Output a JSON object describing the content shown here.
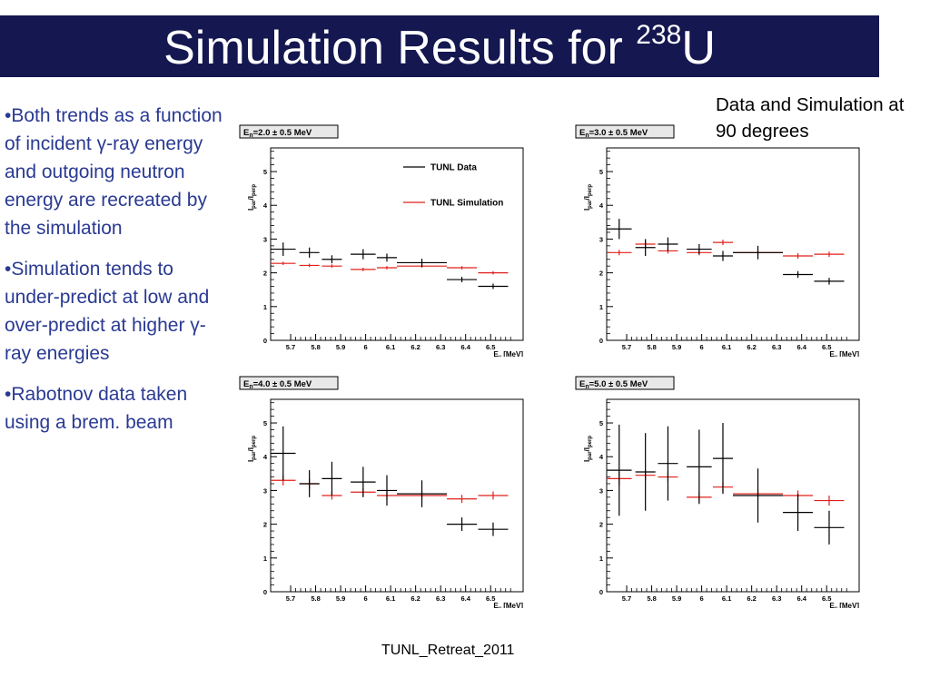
{
  "title": {
    "text": "Simulation Results for ",
    "superscript": "238",
    "element": "U"
  },
  "bullets": [
    {
      "marker": "•",
      "pre": "Both trends as a function of incident ",
      "gamma": "γ",
      "post": "-ray energy and outgoing neutron energy are recreated by the simulation"
    },
    {
      "marker": "•",
      "pre": "Simulation tends to under-predict at low and over-predict at higher ",
      "gamma": "γ",
      "post": "-ray energies"
    },
    {
      "marker": "•",
      "pre": "Rabotnov data taken using a brem. beam",
      "gamma": "",
      "post": ""
    }
  ],
  "side_note": "Data and Simulation at 90 degrees",
  "footer": "TUNL_Retreat_2011",
  "colors": {
    "title_bg": "#141750",
    "bullet_text": "#2a3a92",
    "data": "#000000",
    "simulation": "#e0201b"
  },
  "chart_data": [
    {
      "type": "scatter",
      "title": "En=2.0 ± 0.5 MeV",
      "energy_label": {
        "prefix": "E",
        "sub": "n",
        "text": "=2.0 ± 0.5 MeV"
      },
      "ylabel": {
        "main": "I",
        "sub1": "par",
        "mid": "/I",
        "sub2": "perp"
      },
      "xlabel": {
        "main": "E",
        "sub": "γ",
        "rest": " [MeV]"
      },
      "xlim": [
        5.62,
        6.63
      ],
      "ylim": [
        0,
        5.7
      ],
      "xticks": [
        "5.7",
        "5.8",
        "5.9",
        "6",
        "6.1",
        "6.2",
        "6.3",
        "6.4",
        "6.5"
      ],
      "yticks": [
        "0",
        "1",
        "2",
        "3",
        "4",
        "5"
      ],
      "legend": {
        "position": "top-right",
        "entries": [
          "TUNL Data",
          "TUNL Simulation"
        ]
      },
      "series": [
        {
          "name": "TUNL Data",
          "points": [
            {
              "x": 5.67,
              "xerr": 0.05,
              "y": 2.7,
              "yerr": 0.2
            },
            {
              "x": 5.775,
              "xerr": 0.04,
              "y": 2.6,
              "yerr": 0.15
            },
            {
              "x": 5.865,
              "xerr": 0.04,
              "y": 2.4,
              "yerr": 0.12
            },
            {
              "x": 5.99,
              "xerr": 0.05,
              "y": 2.55,
              "yerr": 0.15
            },
            {
              "x": 6.085,
              "xerr": 0.04,
              "y": 2.45,
              "yerr": 0.12
            },
            {
              "x": 6.225,
              "xerr": 0.1,
              "y": 2.3,
              "yerr": 0.12
            },
            {
              "x": 6.385,
              "xerr": 0.06,
              "y": 1.8,
              "yerr": 0.08
            },
            {
              "x": 6.51,
              "xerr": 0.06,
              "y": 1.6,
              "yerr": 0.08
            }
          ]
        },
        {
          "name": "TUNL Simulation",
          "points": [
            {
              "x": 5.67,
              "xerr": 0.05,
              "y": 2.28,
              "yerr": 0.05
            },
            {
              "x": 5.775,
              "xerr": 0.04,
              "y": 2.22,
              "yerr": 0.05
            },
            {
              "x": 5.865,
              "xerr": 0.04,
              "y": 2.2,
              "yerr": 0.05
            },
            {
              "x": 5.99,
              "xerr": 0.05,
              "y": 2.1,
              "yerr": 0.05
            },
            {
              "x": 6.085,
              "xerr": 0.04,
              "y": 2.15,
              "yerr": 0.05
            },
            {
              "x": 6.225,
              "xerr": 0.1,
              "y": 2.2,
              "yerr": 0.05
            },
            {
              "x": 6.385,
              "xerr": 0.06,
              "y": 2.15,
              "yerr": 0.05
            },
            {
              "x": 6.51,
              "xerr": 0.06,
              "y": 2.0,
              "yerr": 0.05
            }
          ]
        }
      ]
    },
    {
      "type": "scatter",
      "title": "En=3.0 ± 0.5 MeV",
      "energy_label": {
        "prefix": "E",
        "sub": "n",
        "text": "=3.0 ± 0.5 MeV"
      },
      "ylabel": {
        "main": "I",
        "sub1": "par",
        "mid": "/I",
        "sub2": "perp"
      },
      "xlabel": {
        "main": "E",
        "sub": "γ",
        "rest": " [MeV]"
      },
      "xlim": [
        5.62,
        6.63
      ],
      "ylim": [
        0,
        5.7
      ],
      "xticks": [
        "5.7",
        "5.8",
        "5.9",
        "6",
        "6.1",
        "6.2",
        "6.3",
        "6.4",
        "6.5"
      ],
      "yticks": [
        "0",
        "1",
        "2",
        "3",
        "4",
        "5"
      ],
      "legend": null,
      "series": [
        {
          "name": "TUNL Data",
          "points": [
            {
              "x": 5.67,
              "xerr": 0.05,
              "y": 3.3,
              "yerr": 0.3
            },
            {
              "x": 5.775,
              "xerr": 0.04,
              "y": 2.75,
              "yerr": 0.25
            },
            {
              "x": 5.865,
              "xerr": 0.04,
              "y": 2.85,
              "yerr": 0.2
            },
            {
              "x": 5.99,
              "xerr": 0.05,
              "y": 2.7,
              "yerr": 0.15
            },
            {
              "x": 6.085,
              "xerr": 0.04,
              "y": 2.5,
              "yerr": 0.15
            },
            {
              "x": 6.225,
              "xerr": 0.1,
              "y": 2.6,
              "yerr": 0.2
            },
            {
              "x": 6.385,
              "xerr": 0.06,
              "y": 1.95,
              "yerr": 0.1
            },
            {
              "x": 6.51,
              "xerr": 0.06,
              "y": 1.75,
              "yerr": 0.1
            }
          ]
        },
        {
          "name": "TUNL Simulation",
          "points": [
            {
              "x": 5.67,
              "xerr": 0.05,
              "y": 2.6,
              "yerr": 0.08
            },
            {
              "x": 5.775,
              "xerr": 0.04,
              "y": 2.85,
              "yerr": 0.08
            },
            {
              "x": 5.865,
              "xerr": 0.04,
              "y": 2.65,
              "yerr": 0.08
            },
            {
              "x": 5.99,
              "xerr": 0.05,
              "y": 2.6,
              "yerr": 0.08
            },
            {
              "x": 6.085,
              "xerr": 0.04,
              "y": 2.9,
              "yerr": 0.08
            },
            {
              "x": 6.225,
              "xerr": 0.1,
              "y": 2.6,
              "yerr": 0.08
            },
            {
              "x": 6.385,
              "xerr": 0.06,
              "y": 2.5,
              "yerr": 0.08
            },
            {
              "x": 6.51,
              "xerr": 0.06,
              "y": 2.55,
              "yerr": 0.08
            }
          ]
        }
      ]
    },
    {
      "type": "scatter",
      "title": "En=4.0 ± 0.5 MeV",
      "energy_label": {
        "prefix": "E",
        "sub": "n",
        "text": "=4.0 ± 0.5 MeV"
      },
      "ylabel": {
        "main": "I",
        "sub1": "par",
        "mid": "/I",
        "sub2": "perp"
      },
      "xlabel": {
        "main": "E",
        "sub": "γ",
        "rest": " [MeV]"
      },
      "xlim": [
        5.62,
        6.63
      ],
      "ylim": [
        0,
        5.7
      ],
      "xticks": [
        "5.7",
        "5.8",
        "5.9",
        "6",
        "6.1",
        "6.2",
        "6.3",
        "6.4",
        "6.5"
      ],
      "yticks": [
        "0",
        "1",
        "2",
        "3",
        "4",
        "5"
      ],
      "legend": null,
      "series": [
        {
          "name": "TUNL Data",
          "points": [
            {
              "x": 5.67,
              "xerr": 0.05,
              "y": 4.1,
              "yerr": 0.8
            },
            {
              "x": 5.775,
              "xerr": 0.04,
              "y": 3.2,
              "yerr": 0.4
            },
            {
              "x": 5.865,
              "xerr": 0.04,
              "y": 3.35,
              "yerr": 0.5
            },
            {
              "x": 5.99,
              "xerr": 0.05,
              "y": 3.25,
              "yerr": 0.45
            },
            {
              "x": 6.085,
              "xerr": 0.04,
              "y": 3.0,
              "yerr": 0.45
            },
            {
              "x": 6.225,
              "xerr": 0.1,
              "y": 2.9,
              "yerr": 0.4
            },
            {
              "x": 6.385,
              "xerr": 0.06,
              "y": 2.0,
              "yerr": 0.2
            },
            {
              "x": 6.51,
              "xerr": 0.06,
              "y": 1.85,
              "yerr": 0.2
            }
          ]
        },
        {
          "name": "TUNL Simulation",
          "points": [
            {
              "x": 5.67,
              "xerr": 0.05,
              "y": 3.3,
              "yerr": 0.15
            },
            {
              "x": 5.775,
              "xerr": 0.04,
              "y": 3.2,
              "yerr": 0.15
            },
            {
              "x": 5.865,
              "xerr": 0.04,
              "y": 2.85,
              "yerr": 0.12
            },
            {
              "x": 5.99,
              "xerr": 0.05,
              "y": 2.95,
              "yerr": 0.12
            },
            {
              "x": 6.085,
              "xerr": 0.04,
              "y": 2.85,
              "yerr": 0.12
            },
            {
              "x": 6.225,
              "xerr": 0.1,
              "y": 2.85,
              "yerr": 0.12
            },
            {
              "x": 6.385,
              "xerr": 0.06,
              "y": 2.75,
              "yerr": 0.12
            },
            {
              "x": 6.51,
              "xerr": 0.06,
              "y": 2.85,
              "yerr": 0.12
            }
          ]
        }
      ]
    },
    {
      "type": "scatter",
      "title": "En=5.0 ± 0.5 MeV",
      "energy_label": {
        "prefix": "E",
        "sub": "n",
        "text": "=5.0 ± 0.5 MeV"
      },
      "ylabel": {
        "main": "I",
        "sub1": "par",
        "mid": "/I",
        "sub2": "perp"
      },
      "xlabel": {
        "main": "E",
        "sub": "γ",
        "rest": " [MeV]"
      },
      "xlim": [
        5.62,
        6.63
      ],
      "ylim": [
        0,
        5.7
      ],
      "xticks": [
        "5.7",
        "5.8",
        "5.9",
        "6",
        "6.1",
        "6.2",
        "6.3",
        "6.4",
        "6.5"
      ],
      "yticks": [
        "0",
        "1",
        "2",
        "3",
        "4",
        "5"
      ],
      "legend": null,
      "series": [
        {
          "name": "TUNL Data",
          "points": [
            {
              "x": 5.67,
              "xerr": 0.05,
              "y": 3.6,
              "yerr": 1.35
            },
            {
              "x": 5.775,
              "xerr": 0.04,
              "y": 3.55,
              "yerr": 1.15
            },
            {
              "x": 5.865,
              "xerr": 0.04,
              "y": 3.8,
              "yerr": 1.1
            },
            {
              "x": 5.99,
              "xerr": 0.05,
              "y": 3.7,
              "yerr": 1.1
            },
            {
              "x": 6.085,
              "xerr": 0.04,
              "y": 3.95,
              "yerr": 1.05
            },
            {
              "x": 6.225,
              "xerr": 0.1,
              "y": 2.85,
              "yerr": 0.8
            },
            {
              "x": 6.385,
              "xerr": 0.06,
              "y": 2.35,
              "yerr": 0.55
            },
            {
              "x": 6.51,
              "xerr": 0.06,
              "y": 1.9,
              "yerr": 0.5
            }
          ]
        },
        {
          "name": "TUNL Simulation",
          "points": [
            {
              "x": 5.67,
              "xerr": 0.05,
              "y": 3.35,
              "yerr": 0.2
            },
            {
              "x": 5.775,
              "xerr": 0.04,
              "y": 3.45,
              "yerr": 0.15
            },
            {
              "x": 5.865,
              "xerr": 0.04,
              "y": 3.4,
              "yerr": 0.15
            },
            {
              "x": 5.99,
              "xerr": 0.05,
              "y": 2.8,
              "yerr": 0.15
            },
            {
              "x": 6.085,
              "xerr": 0.04,
              "y": 3.1,
              "yerr": 0.15
            },
            {
              "x": 6.225,
              "xerr": 0.1,
              "y": 2.9,
              "yerr": 0.15
            },
            {
              "x": 6.385,
              "xerr": 0.06,
              "y": 2.85,
              "yerr": 0.15
            },
            {
              "x": 6.51,
              "xerr": 0.06,
              "y": 2.7,
              "yerr": 0.15
            }
          ]
        }
      ]
    }
  ]
}
